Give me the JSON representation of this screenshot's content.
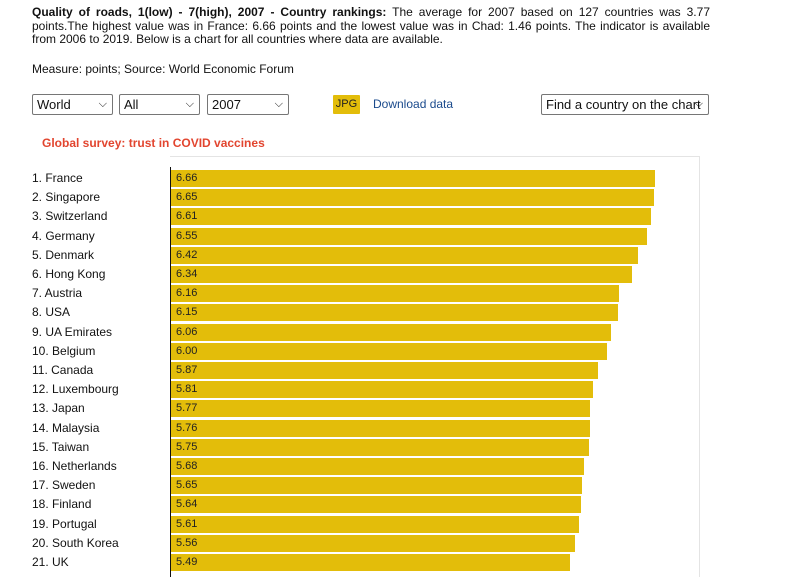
{
  "intro": {
    "title": "Quality of roads, 1(low) - 7(high), 2007 - Country rankings:",
    "text": " The average for 2007 based on 127 countries was 3.77 points.The highest value was in France: 6.66 points and the lowest value was in Chad: 1.46 points. The indicator is available from 2006 to 2019. Below is a chart for all countries where data are available."
  },
  "measure": "Measure: points; Source: World Economic Forum",
  "controls": {
    "region": "World",
    "group": "All",
    "year": "2007",
    "jpg_label": "JPG",
    "download_label": "Download data",
    "find_country": "Find a country on the chart"
  },
  "chart_title": "Global survey: trust in COVID vaccines",
  "chart_data": {
    "type": "bar",
    "orientation": "horizontal",
    "categories": [
      "1. France",
      "2. Singapore",
      "3. Switzerland",
      "4. Germany",
      "5. Denmark",
      "6. Hong Kong",
      "7. Austria",
      "8. USA",
      "9. UA Emirates",
      "10. Belgium",
      "11. Canada",
      "12. Luxembourg",
      "13. Japan",
      "14. Malaysia",
      "15. Taiwan",
      "16. Netherlands",
      "17. Sweden",
      "18. Finland",
      "19. Portugal",
      "20. South Korea",
      "21. UK"
    ],
    "values": [
      6.66,
      6.65,
      6.61,
      6.55,
      6.42,
      6.34,
      6.16,
      6.15,
      6.06,
      6.0,
      5.87,
      5.81,
      5.77,
      5.76,
      5.75,
      5.68,
      5.65,
      5.64,
      5.61,
      5.56,
      5.49
    ],
    "value_labels": [
      "6.66",
      "6.65",
      "6.61",
      "6.55",
      "6.42",
      "6.34",
      "6.16",
      "6.15",
      "6.06",
      "6.00",
      "5.87",
      "5.81",
      "5.77",
      "5.76",
      "5.75",
      "5.68",
      "5.65",
      "5.64",
      "5.61",
      "5.56",
      "5.49"
    ],
    "bar_color": "#e3bd0a"
  }
}
